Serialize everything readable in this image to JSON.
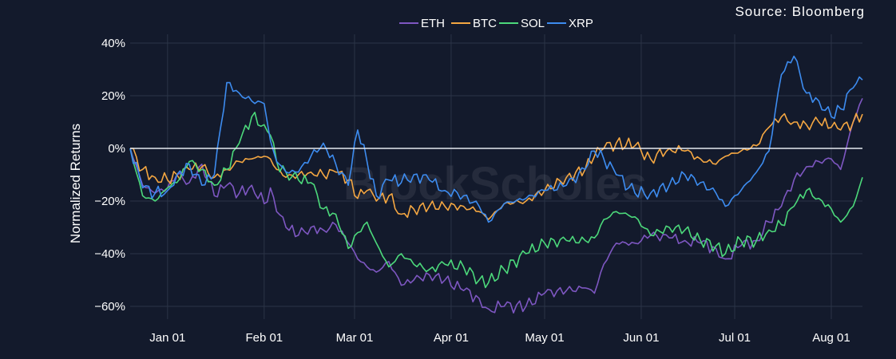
{
  "source": "Source: Bloomberg",
  "watermark": "BlockScholes",
  "chart_data": {
    "type": "line",
    "xlabel": "",
    "ylabel": "Normalized Returns",
    "ylim": [
      -67,
      42
    ],
    "x_start": "2023-12-20",
    "x_end": "2024-08-11",
    "x_ticks": [
      "Jan 01",
      "Feb 01",
      "Mar 01",
      "Apr 01",
      "May 01",
      "Jun 01",
      "Jul 01",
      "Aug 01"
    ],
    "x_tick_dates": [
      "2024-01-01",
      "2024-02-01",
      "2024-03-01",
      "2024-04-01",
      "2024-05-01",
      "2024-06-01",
      "2024-07-01",
      "2024-08-01"
    ],
    "y_ticks": [
      40,
      20,
      0,
      -20,
      -40,
      -60
    ],
    "y_tick_labels": [
      "40%",
      "20%",
      "0%",
      "−20%",
      "−40%",
      "−60%"
    ],
    "grid": true,
    "legend_position": "top-center",
    "zero_line": true,
    "series": [
      {
        "name": "ETH",
        "color": "#7e57c2",
        "points": [
          [
            "2023-12-20",
            0
          ],
          [
            "2023-12-24",
            -14
          ],
          [
            "2023-12-28",
            -17
          ],
          [
            "2024-01-01",
            -15
          ],
          [
            "2024-01-04",
            -10
          ],
          [
            "2024-01-08",
            -13
          ],
          [
            "2024-01-12",
            -6
          ],
          [
            "2024-01-16",
            -18
          ],
          [
            "2024-01-20",
            -14
          ],
          [
            "2024-01-24",
            -17
          ],
          [
            "2024-01-28",
            -14
          ],
          [
            "2024-02-01",
            -21
          ],
          [
            "2024-02-03",
            -15
          ],
          [
            "2024-02-05",
            -24
          ],
          [
            "2024-02-08",
            -30
          ],
          [
            "2024-02-12",
            -33
          ],
          [
            "2024-02-16",
            -30
          ],
          [
            "2024-02-20",
            -31
          ],
          [
            "2024-02-24",
            -29
          ],
          [
            "2024-02-28",
            -36
          ],
          [
            "2024-03-02",
            -42
          ],
          [
            "2024-03-05",
            -45
          ],
          [
            "2024-03-08",
            -47
          ],
          [
            "2024-03-12",
            -43
          ],
          [
            "2024-03-16",
            -52
          ],
          [
            "2024-03-20",
            -50
          ],
          [
            "2024-03-25",
            -48
          ],
          [
            "2024-03-30",
            -50
          ],
          [
            "2024-04-05",
            -54
          ],
          [
            "2024-04-10",
            -57
          ],
          [
            "2024-04-13",
            -61
          ],
          [
            "2024-04-18",
            -60
          ],
          [
            "2024-04-25",
            -60
          ],
          [
            "2024-05-01",
            -55
          ],
          [
            "2024-05-08",
            -54
          ],
          [
            "2024-05-14",
            -53
          ],
          [
            "2024-05-17",
            -55
          ],
          [
            "2024-05-20",
            -44
          ],
          [
            "2024-05-24",
            -36
          ],
          [
            "2024-05-30",
            -36
          ],
          [
            "2024-06-04",
            -33
          ],
          [
            "2024-06-10",
            -34
          ],
          [
            "2024-06-15",
            -35
          ],
          [
            "2024-06-20",
            -36
          ],
          [
            "2024-06-25",
            -38
          ],
          [
            "2024-06-28",
            -42
          ],
          [
            "2024-07-03",
            -37
          ],
          [
            "2024-07-08",
            -35
          ],
          [
            "2024-07-12",
            -28
          ],
          [
            "2024-07-16",
            -22
          ],
          [
            "2024-07-20",
            -12
          ],
          [
            "2024-07-24",
            -7
          ],
          [
            "2024-07-28",
            -5
          ],
          [
            "2024-08-01",
            -4
          ],
          [
            "2024-08-04",
            -8
          ],
          [
            "2024-08-08",
            10
          ],
          [
            "2024-08-11",
            19
          ]
        ]
      },
      {
        "name": "BTC",
        "color": "#f5a742",
        "points": [
          [
            "2023-12-20",
            0
          ],
          [
            "2023-12-24",
            -8
          ],
          [
            "2023-12-28",
            -11
          ],
          [
            "2024-01-01",
            -12
          ],
          [
            "2024-01-04",
            -10
          ],
          [
            "2024-01-08",
            -8
          ],
          [
            "2024-01-12",
            -7
          ],
          [
            "2024-01-16",
            -11
          ],
          [
            "2024-01-20",
            -8
          ],
          [
            "2024-01-24",
            -5
          ],
          [
            "2024-01-28",
            -4
          ],
          [
            "2024-02-01",
            -3
          ],
          [
            "2024-02-03",
            -4
          ],
          [
            "2024-02-05",
            -8
          ],
          [
            "2024-02-08",
            -11
          ],
          [
            "2024-02-12",
            -10
          ],
          [
            "2024-02-16",
            -9
          ],
          [
            "2024-02-20",
            -10
          ],
          [
            "2024-02-24",
            -9
          ],
          [
            "2024-02-28",
            -12
          ],
          [
            "2024-03-02",
            -19
          ],
          [
            "2024-03-05",
            -16
          ],
          [
            "2024-03-08",
            -20
          ],
          [
            "2024-03-12",
            -18
          ],
          [
            "2024-03-16",
            -25
          ],
          [
            "2024-03-20",
            -23
          ],
          [
            "2024-03-25",
            -22
          ],
          [
            "2024-03-30",
            -22
          ],
          [
            "2024-04-05",
            -22
          ],
          [
            "2024-04-10",
            -24
          ],
          [
            "2024-04-13",
            -27
          ],
          [
            "2024-04-18",
            -21
          ],
          [
            "2024-04-25",
            -20
          ],
          [
            "2024-05-01",
            -16
          ],
          [
            "2024-05-08",
            -11
          ],
          [
            "2024-05-14",
            -8
          ],
          [
            "2024-05-17",
            -3
          ],
          [
            "2024-05-20",
            0
          ],
          [
            "2024-05-24",
            2
          ],
          [
            "2024-05-30",
            1
          ],
          [
            "2024-06-04",
            -4
          ],
          [
            "2024-06-10",
            0
          ],
          [
            "2024-06-15",
            -1
          ],
          [
            "2024-06-20",
            -4
          ],
          [
            "2024-06-25",
            -6
          ],
          [
            "2024-06-28",
            -3
          ],
          [
            "2024-07-03",
            -1
          ],
          [
            "2024-07-08",
            1
          ],
          [
            "2024-07-12",
            8
          ],
          [
            "2024-07-16",
            12
          ],
          [
            "2024-07-20",
            10
          ],
          [
            "2024-07-24",
            9
          ],
          [
            "2024-07-28",
            10
          ],
          [
            "2024-08-01",
            8
          ],
          [
            "2024-08-04",
            7
          ],
          [
            "2024-08-08",
            10
          ],
          [
            "2024-08-11",
            13
          ]
        ]
      },
      {
        "name": "SOL",
        "color": "#4cd97b",
        "points": [
          [
            "2023-12-20",
            0
          ],
          [
            "2023-12-24",
            -18
          ],
          [
            "2023-12-28",
            -20
          ],
          [
            "2024-01-01",
            -15
          ],
          [
            "2024-01-04",
            -13
          ],
          [
            "2024-01-08",
            -5
          ],
          [
            "2024-01-12",
            -8
          ],
          [
            "2024-01-16",
            -14
          ],
          [
            "2024-01-20",
            -8
          ],
          [
            "2024-01-24",
            2
          ],
          [
            "2024-01-28",
            12
          ],
          [
            "2024-02-01",
            9
          ],
          [
            "2024-02-03",
            5
          ],
          [
            "2024-02-05",
            -5
          ],
          [
            "2024-02-08",
            -9
          ],
          [
            "2024-02-12",
            -12
          ],
          [
            "2024-02-16",
            -13
          ],
          [
            "2024-02-20",
            -23
          ],
          [
            "2024-02-24",
            -25
          ],
          [
            "2024-02-28",
            -38
          ],
          [
            "2024-03-02",
            -32
          ],
          [
            "2024-03-05",
            -28
          ],
          [
            "2024-03-08",
            -36
          ],
          [
            "2024-03-12",
            -45
          ],
          [
            "2024-03-16",
            -40
          ],
          [
            "2024-03-20",
            -44
          ],
          [
            "2024-03-25",
            -46
          ],
          [
            "2024-03-30",
            -44
          ],
          [
            "2024-04-05",
            -45
          ],
          [
            "2024-04-10",
            -50
          ],
          [
            "2024-04-13",
            -51
          ],
          [
            "2024-04-18",
            -46
          ],
          [
            "2024-04-25",
            -40
          ],
          [
            "2024-05-01",
            -36
          ],
          [
            "2024-05-08",
            -35
          ],
          [
            "2024-05-14",
            -35
          ],
          [
            "2024-05-17",
            -34
          ],
          [
            "2024-05-20",
            -27
          ],
          [
            "2024-05-24",
            -24
          ],
          [
            "2024-05-30",
            -26
          ],
          [
            "2024-06-04",
            -33
          ],
          [
            "2024-06-10",
            -30
          ],
          [
            "2024-06-15",
            -31
          ],
          [
            "2024-06-20",
            -35
          ],
          [
            "2024-06-25",
            -37
          ],
          [
            "2024-06-28",
            -40
          ],
          [
            "2024-07-03",
            -35
          ],
          [
            "2024-07-08",
            -35
          ],
          [
            "2024-07-12",
            -31
          ],
          [
            "2024-07-16",
            -29
          ],
          [
            "2024-07-20",
            -22
          ],
          [
            "2024-07-24",
            -16
          ],
          [
            "2024-07-28",
            -19
          ],
          [
            "2024-08-01",
            -23
          ],
          [
            "2024-08-04",
            -28
          ],
          [
            "2024-08-08",
            -22
          ],
          [
            "2024-08-11",
            -11
          ]
        ]
      },
      {
        "name": "XRP",
        "color": "#3d8cf0",
        "points": [
          [
            "2023-12-20",
            0
          ],
          [
            "2023-12-24",
            -15
          ],
          [
            "2023-12-28",
            -17
          ],
          [
            "2024-01-01",
            -16
          ],
          [
            "2024-01-04",
            -10
          ],
          [
            "2024-01-08",
            -6
          ],
          [
            "2024-01-12",
            -14
          ],
          [
            "2024-01-16",
            -10
          ],
          [
            "2024-01-20",
            25
          ],
          [
            "2024-01-24",
            21
          ],
          [
            "2024-01-28",
            18
          ],
          [
            "2024-02-01",
            17
          ],
          [
            "2024-02-03",
            3
          ],
          [
            "2024-02-05",
            -5
          ],
          [
            "2024-02-08",
            -9
          ],
          [
            "2024-02-12",
            -9
          ],
          [
            "2024-02-16",
            -3
          ],
          [
            "2024-02-20",
            2
          ],
          [
            "2024-02-24",
            -6
          ],
          [
            "2024-02-28",
            -14
          ],
          [
            "2024-03-02",
            7
          ],
          [
            "2024-03-05",
            -5
          ],
          [
            "2024-03-08",
            -18
          ],
          [
            "2024-03-12",
            -12
          ],
          [
            "2024-03-16",
            -13
          ],
          [
            "2024-03-20",
            -10
          ],
          [
            "2024-03-25",
            -12
          ],
          [
            "2024-03-30",
            -16
          ],
          [
            "2024-04-05",
            -18
          ],
          [
            "2024-04-10",
            -22
          ],
          [
            "2024-04-13",
            -28
          ],
          [
            "2024-04-18",
            -21
          ],
          [
            "2024-04-25",
            -19
          ],
          [
            "2024-05-01",
            -16
          ],
          [
            "2024-05-08",
            -14
          ],
          [
            "2024-05-14",
            -8
          ],
          [
            "2024-05-17",
            -1
          ],
          [
            "2024-05-20",
            -4
          ],
          [
            "2024-05-24",
            -10
          ],
          [
            "2024-05-30",
            -17
          ],
          [
            "2024-06-04",
            -17
          ],
          [
            "2024-06-10",
            -14
          ],
          [
            "2024-06-15",
            -10
          ],
          [
            "2024-06-20",
            -13
          ],
          [
            "2024-06-25",
            -17
          ],
          [
            "2024-06-28",
            -22
          ],
          [
            "2024-07-03",
            -16
          ],
          [
            "2024-07-08",
            -9
          ],
          [
            "2024-07-12",
            -1
          ],
          [
            "2024-07-16",
            28
          ],
          [
            "2024-07-20",
            35
          ],
          [
            "2024-07-24",
            21
          ],
          [
            "2024-07-28",
            18
          ],
          [
            "2024-08-01",
            12
          ],
          [
            "2024-08-04",
            15
          ],
          [
            "2024-08-08",
            23
          ],
          [
            "2024-08-11",
            26
          ]
        ]
      }
    ]
  }
}
